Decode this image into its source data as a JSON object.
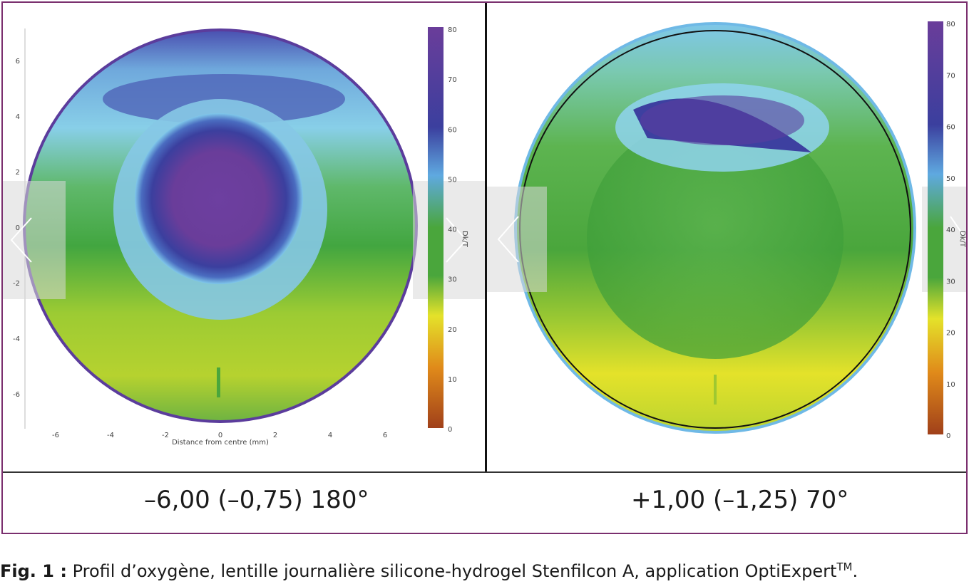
{
  "panels": {
    "left": {
      "label": "–6,00 (–0,75) 180°",
      "x_axis_label": "Distance from centre (mm)",
      "x_ticks": [
        "-6",
        "-4",
        "-2",
        "0",
        "2",
        "4",
        "6"
      ],
      "y_ticks": [
        "6",
        "4",
        "2",
        "0",
        "-2",
        "-4",
        "-6"
      ],
      "colorbar_ticks": [
        "80",
        "70",
        "60",
        "50",
        "40",
        "30",
        "20",
        "10",
        "0"
      ],
      "colorbar_label": "Dk/T"
    },
    "right": {
      "label": "+1,00 (–1,25) 70°",
      "colorbar_ticks": [
        "80",
        "70",
        "60",
        "50",
        "40",
        "30",
        "20",
        "10",
        "0"
      ],
      "colorbar_label": "Dk/T"
    }
  },
  "caption": {
    "prefix": "Fig. 1 :",
    "text": " Profil d’oxygène, lentille journalière silicone-hydrogel Stenfilcon A, application OptiExpert",
    "superscript": "TM",
    "suffix": "."
  },
  "colors": {
    "frame": "#7a2f6e",
    "purple": "#6a3d9a",
    "blue": "#3b3f9e",
    "light_blue": "#7fc7ea",
    "green": "#4aa63c",
    "yellow": "#e4e22a",
    "orange": "#e08a1a",
    "brown": "#a0401a"
  }
}
